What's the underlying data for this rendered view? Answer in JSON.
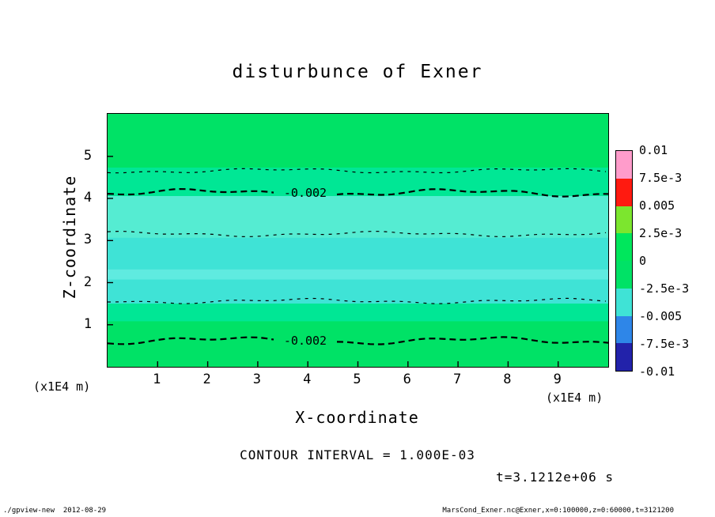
{
  "window": {
    "background": "#ffffff"
  },
  "chart_data": {
    "type": "heatmap",
    "title": "disturbunce of Exner",
    "xlabel": "X-coordinate",
    "ylabel": "Z-coordinate",
    "x_unit_label": "(x1E4 m)",
    "y_unit_label": "(x1E4 m)",
    "x_ticks": [
      1,
      2,
      3,
      4,
      5,
      6,
      7,
      8,
      9
    ],
    "y_ticks": [
      1,
      2,
      3,
      4,
      5
    ],
    "x_axis_range": [
      0,
      10
    ],
    "y_axis_range": [
      0,
      6
    ],
    "grid": false,
    "legend_position": "right-colorbar",
    "bands": [
      {
        "from": 0.0,
        "to": 0.2125,
        "color": "#00E266"
      },
      {
        "from": 0.2125,
        "to": 0.325,
        "color": "#00E795"
      },
      {
        "from": 0.325,
        "to": 0.49,
        "color": "#55ECD2"
      },
      {
        "from": 0.49,
        "to": 0.615,
        "color": "#3FE3D6"
      },
      {
        "from": 0.615,
        "to": 0.655,
        "color": "#5FEBE0"
      },
      {
        "from": 0.655,
        "to": 0.75,
        "color": "#3FE3D6"
      },
      {
        "from": 0.75,
        "to": 0.82,
        "color": "#00E795"
      },
      {
        "from": 0.82,
        "to": 1.0,
        "color": "#00E266"
      }
    ],
    "contours": [
      {
        "frac": 0.225,
        "weight": "thin",
        "label": ""
      },
      {
        "frac": 0.3125,
        "weight": "thick",
        "label": "-0.002"
      },
      {
        "frac": 0.475,
        "weight": "thin",
        "label": ""
      },
      {
        "frac": 0.74,
        "weight": "thin",
        "label": ""
      },
      {
        "frac": 0.897,
        "weight": "thick",
        "label": "-0.002"
      }
    ],
    "colorbar": {
      "labels": [
        "0.01",
        "7.5e-3",
        "0.005",
        "2.5e-3",
        "0",
        "-2.5e-3",
        "-0.005",
        "-7.5e-3",
        "-0.01"
      ],
      "colors": [
        "#FF9CCB",
        "#FF1A10",
        "#7CE62E",
        "#00E75C",
        "#00E266",
        "#3FE3D6",
        "#2E86E8",
        "#2222AA"
      ]
    },
    "contour_interval_label": "CONTOUR INTERVAL = 1.000E-03",
    "time_label": "t=3.1212e+06 s"
  },
  "footer": {
    "left": "./gpview-new  2012-08-29",
    "right": "MarsCond_Exner.nc@Exner,x=0:100000,z=0:60000,t=3121200"
  }
}
